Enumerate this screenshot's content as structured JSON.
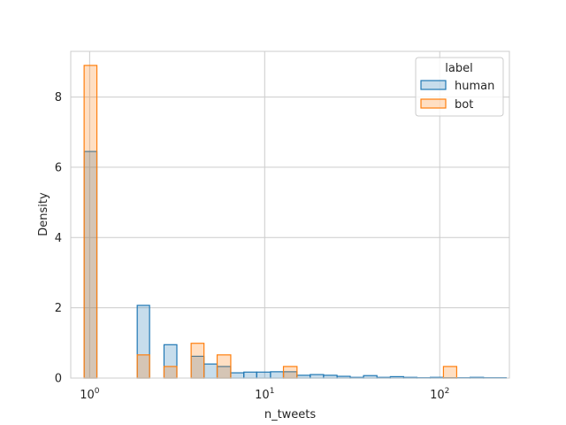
{
  "chart_data": {
    "type": "bar",
    "subtype": "histogram-step-overlay",
    "xlabel": "n_tweets",
    "ylabel": "Density",
    "xscale": "log",
    "xlim": [
      0.78,
      250
    ],
    "ylim": [
      0,
      9.3
    ],
    "xticks": [
      {
        "value": 1,
        "base": "10",
        "exp": "0"
      },
      {
        "value": 10,
        "base": "10",
        "exp": "1"
      },
      {
        "value": 100,
        "base": "10",
        "exp": "2"
      }
    ],
    "yticks": [
      0,
      2,
      4,
      6,
      8
    ],
    "grid": true,
    "legend": {
      "title": "label",
      "position": "top-right"
    },
    "series": [
      {
        "name": "human",
        "color": "#1f77b4",
        "bins": [
          {
            "x0": 0.93,
            "x1": 1.1,
            "value": 6.45
          },
          {
            "x0": 1.87,
            "x1": 2.2,
            "value": 2.07
          },
          {
            "x0": 2.66,
            "x1": 3.15,
            "value": 0.95
          },
          {
            "x0": 3.8,
            "x1": 4.5,
            "value": 0.62
          },
          {
            "x0": 4.5,
            "x1": 5.35,
            "value": 0.4
          },
          {
            "x0": 5.35,
            "x1": 6.4,
            "value": 0.33
          },
          {
            "x0": 6.4,
            "x1": 7.6,
            "value": 0.15
          },
          {
            "x0": 7.6,
            "x1": 9.0,
            "value": 0.17
          },
          {
            "x0": 9.0,
            "x1": 10.8,
            "value": 0.17
          },
          {
            "x0": 10.8,
            "x1": 12.8,
            "value": 0.18
          },
          {
            "x0": 12.8,
            "x1": 15.3,
            "value": 0.18
          },
          {
            "x0": 15.3,
            "x1": 18.2,
            "value": 0.08
          },
          {
            "x0": 18.2,
            "x1": 21.7,
            "value": 0.1
          },
          {
            "x0": 21.7,
            "x1": 25.9,
            "value": 0.08
          },
          {
            "x0": 25.9,
            "x1": 30.8,
            "value": 0.05
          },
          {
            "x0": 30.8,
            "x1": 36.7,
            "value": 0.02
          },
          {
            "x0": 36.7,
            "x1": 43.8,
            "value": 0.07
          },
          {
            "x0": 43.8,
            "x1": 52.2,
            "value": 0.02
          },
          {
            "x0": 52.2,
            "x1": 62.2,
            "value": 0.04
          },
          {
            "x0": 62.2,
            "x1": 74.1,
            "value": 0.02
          },
          {
            "x0": 74.1,
            "x1": 88.3,
            "value": 0.01
          },
          {
            "x0": 88.3,
            "x1": 105,
            "value": 0.02
          },
          {
            "x0": 105,
            "x1": 125,
            "value": 0.01
          },
          {
            "x0": 125,
            "x1": 149,
            "value": 0.01
          },
          {
            "x0": 149,
            "x1": 178,
            "value": 0.02
          },
          {
            "x0": 178,
            "x1": 240,
            "value": 0.01
          }
        ]
      },
      {
        "name": "bot",
        "color": "#ff7f0e",
        "bins": [
          {
            "x0": 0.93,
            "x1": 1.1,
            "value": 8.9
          },
          {
            "x0": 1.87,
            "x1": 2.2,
            "value": 0.66
          },
          {
            "x0": 2.66,
            "x1": 3.15,
            "value": 0.33
          },
          {
            "x0": 3.8,
            "x1": 4.5,
            "value": 0.99
          },
          {
            "x0": 5.35,
            "x1": 6.4,
            "value": 0.66
          },
          {
            "x0": 12.8,
            "x1": 15.3,
            "value": 0.33
          },
          {
            "x0": 105,
            "x1": 125,
            "value": 0.33
          }
        ]
      }
    ]
  }
}
